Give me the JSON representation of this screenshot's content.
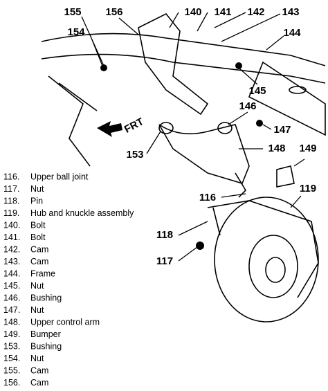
{
  "callouts": [
    "155",
    "156",
    "140",
    "141",
    "142",
    "143",
    "144",
    "154",
    "145",
    "146",
    "147",
    "148",
    "149",
    "153",
    "116",
    "119",
    "118",
    "117"
  ],
  "direction_label": "FRT",
  "legend": [
    {
      "number": "116.",
      "name": "Upper ball joint"
    },
    {
      "number": "117.",
      "name": "Nut"
    },
    {
      "number": "118.",
      "name": "Pin"
    },
    {
      "number": "119.",
      "name": "Hub and knuckle assembly"
    },
    {
      "number": "140.",
      "name": "Bolt"
    },
    {
      "number": "141.",
      "name": "Bolt"
    },
    {
      "number": "142.",
      "name": "Cam"
    },
    {
      "number": "143.",
      "name": "Cam"
    },
    {
      "number": "144.",
      "name": "Frame"
    },
    {
      "number": "145.",
      "name": "Nut"
    },
    {
      "number": "146.",
      "name": "Bushing"
    },
    {
      "number": "147.",
      "name": "Nut"
    },
    {
      "number": "148.",
      "name": "Upper control arm"
    },
    {
      "number": "149.",
      "name": "Bumper"
    },
    {
      "number": "153.",
      "name": "Bushing"
    },
    {
      "number": "154.",
      "name": "Nut"
    },
    {
      "number": "155.",
      "name": "Cam"
    },
    {
      "number": "156.",
      "name": "Cam"
    }
  ]
}
